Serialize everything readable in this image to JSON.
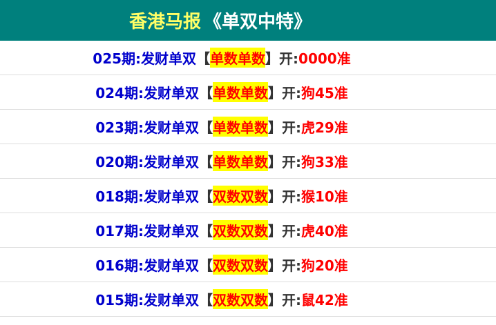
{
  "header": {
    "title_main": "香港马报",
    "title_sub": "《单双中特》"
  },
  "colors": {
    "header_bg": "#00807d",
    "title": "#ffff66",
    "period": "#0000cc",
    "highlight_bg": "#ffff00",
    "result": "#ff0000"
  },
  "rows": [
    {
      "period": "025期:发财单双",
      "open_bracket": "【",
      "pick": "单数单数",
      "close_bracket": "】",
      "open_label": "开:",
      "result": "0000准"
    },
    {
      "period": "024期:发财单双",
      "open_bracket": "【",
      "pick": "单数单数",
      "close_bracket": "】",
      "open_label": "开:",
      "result": "狗45准"
    },
    {
      "period": "023期:发财单双",
      "open_bracket": "【",
      "pick": "单数单数",
      "close_bracket": "】",
      "open_label": "开:",
      "result": "虎29准"
    },
    {
      "period": "020期:发财单双",
      "open_bracket": "【",
      "pick": "单数单数",
      "close_bracket": "】",
      "open_label": "开:",
      "result": "狗33准"
    },
    {
      "period": "018期:发财单双",
      "open_bracket": "【",
      "pick": "双数双数",
      "close_bracket": "】",
      "open_label": "开:",
      "result": "猴10准"
    },
    {
      "period": "017期:发财单双",
      "open_bracket": "【",
      "pick": "双数双数",
      "close_bracket": "】",
      "open_label": "开:",
      "result": "虎40准"
    },
    {
      "period": "016期:发财单双",
      "open_bracket": "【",
      "pick": "双数双数",
      "close_bracket": "】",
      "open_label": "开:",
      "result": "狗20准"
    },
    {
      "period": "015期:发财单双",
      "open_bracket": "【",
      "pick": "双数双数",
      "close_bracket": "】",
      "open_label": "开:",
      "result": "鼠42准"
    }
  ]
}
